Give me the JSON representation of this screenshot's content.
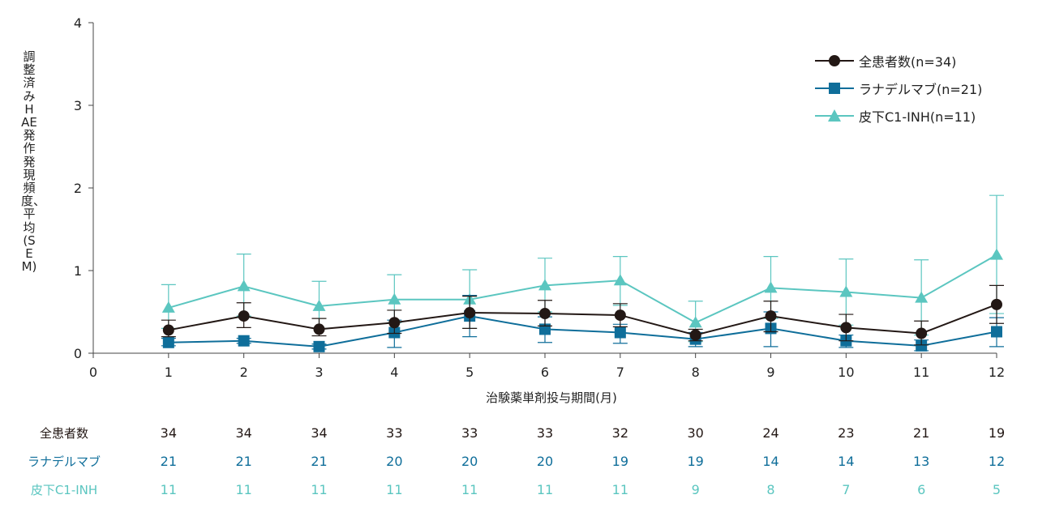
{
  "chart_data": {
    "type": "line",
    "ylabel": "調整済みHAE発作発現頻度、平均(SEM)",
    "xlabel": "治験薬単剤投与期間(月)",
    "xlim": [
      0,
      12
    ],
    "ylim": [
      0,
      4
    ],
    "x_ticks": [
      "0",
      "1",
      "2",
      "3",
      "4",
      "5",
      "6",
      "7",
      "8",
      "9",
      "10",
      "11",
      "12"
    ],
    "y_ticks": [
      "0",
      "1",
      "2",
      "3",
      "4"
    ],
    "x": [
      1,
      2,
      3,
      4,
      5,
      6,
      7,
      8,
      9,
      10,
      11,
      12
    ],
    "legend_position": "top-right",
    "grid": false,
    "series": [
      {
        "name": "全患者数(n=34)",
        "marker": "circle",
        "color": "#231815",
        "values": [
          0.28,
          0.45,
          0.29,
          0.37,
          0.49,
          0.48,
          0.46,
          0.22,
          0.45,
          0.31,
          0.24,
          0.59
        ],
        "error_upper": [
          0.4,
          0.61,
          0.42,
          0.52,
          0.69,
          0.64,
          0.6,
          0.29,
          0.63,
          0.47,
          0.39,
          0.82
        ],
        "error_lower": [
          0.2,
          0.31,
          0.21,
          0.24,
          0.3,
          0.33,
          0.32,
          0.15,
          0.26,
          0.15,
          0.1,
          0.36
        ]
      },
      {
        "name": "ラナデルマブ(n=21)",
        "marker": "square",
        "color": "#0f6e9a",
        "values": [
          0.13,
          0.15,
          0.08,
          0.25,
          0.45,
          0.29,
          0.25,
          0.17,
          0.3,
          0.15,
          0.09,
          0.26
        ],
        "error_upper": [
          0.18,
          0.18,
          0.11,
          0.4,
          0.7,
          0.44,
          0.35,
          0.25,
          0.5,
          0.22,
          0.16,
          0.43
        ],
        "error_lower": [
          0.09,
          0.12,
          0.05,
          0.07,
          0.2,
          0.13,
          0.12,
          0.08,
          0.08,
          0.07,
          0.03,
          0.08
        ]
      },
      {
        "name": "皮下C1-INH(n=11)",
        "marker": "triangle",
        "color": "#5bc6c0",
        "values": [
          0.55,
          0.81,
          0.57,
          0.65,
          0.65,
          0.82,
          0.88,
          0.37,
          0.79,
          0.74,
          0.67,
          1.19
        ],
        "error_upper": [
          0.83,
          1.2,
          0.87,
          0.95,
          1.01,
          1.15,
          1.17,
          0.63,
          1.17,
          1.14,
          1.13,
          1.91
        ],
        "error_lower": [
          0.3,
          0.45,
          0.3,
          0.37,
          0.3,
          0.5,
          0.58,
          0.14,
          0.42,
          0.34,
          0.22,
          0.48
        ]
      }
    ]
  },
  "counts_table": {
    "rows": [
      {
        "label": "全患者数",
        "color": "#231815",
        "values": [
          "34",
          "34",
          "34",
          "33",
          "33",
          "33",
          "32",
          "30",
          "24",
          "23",
          "21",
          "19"
        ]
      },
      {
        "label": "ラナデルマブ",
        "color": "#0f6e9a",
        "values": [
          "21",
          "21",
          "21",
          "20",
          "20",
          "20",
          "19",
          "19",
          "14",
          "14",
          "13",
          "12"
        ]
      },
      {
        "label": "皮下C1-INH",
        "color": "#5bc6c0",
        "values": [
          "11",
          "11",
          "11",
          "11",
          "11",
          "11",
          "11",
          "9",
          "8",
          "7",
          "6",
          "5"
        ]
      }
    ]
  }
}
